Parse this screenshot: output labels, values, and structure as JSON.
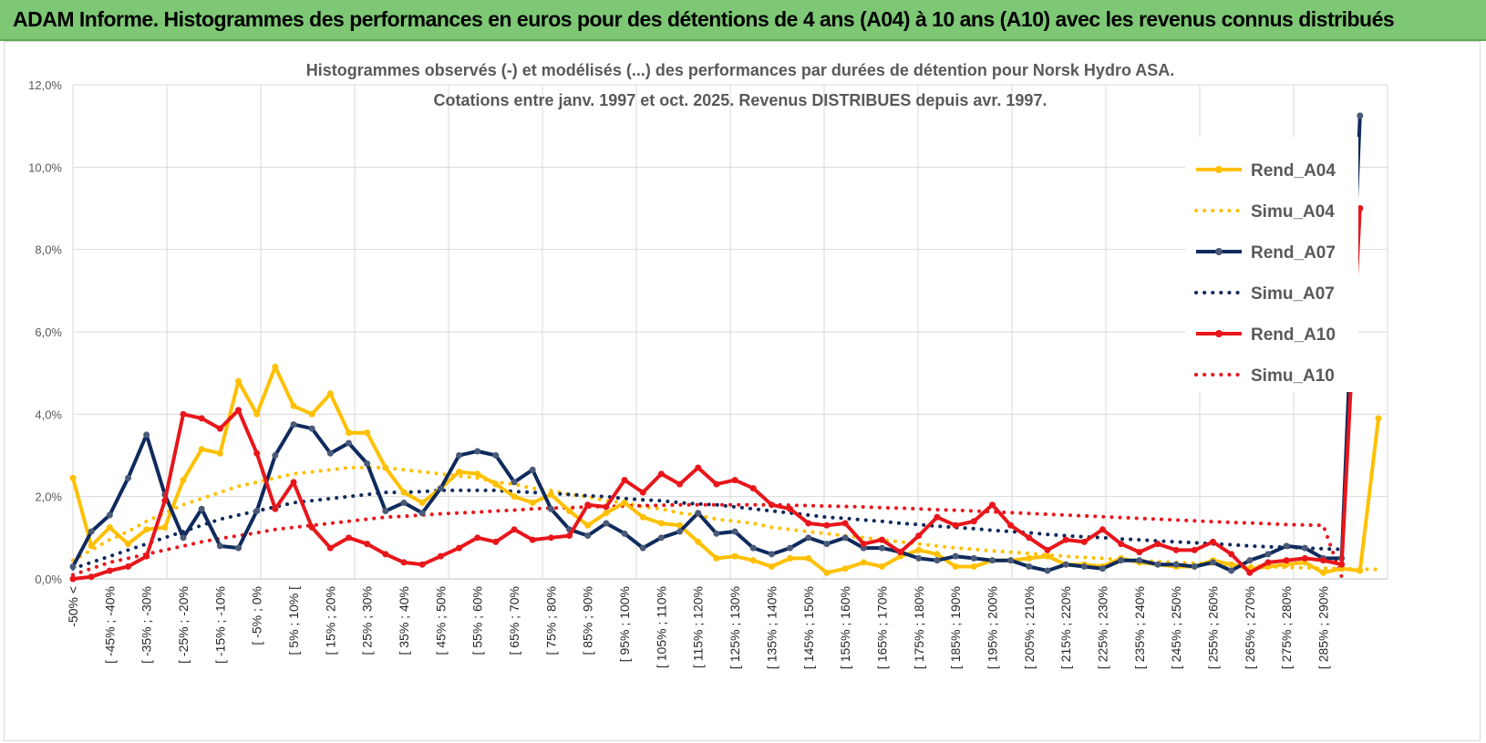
{
  "header": {
    "title": "ADAM Informe. Histogrammes des performances en euros pour des détentions de 4 ans (A04) à 10 ans (A10) avec les revenus connus distribués"
  },
  "chart_data": {
    "type": "line",
    "title": "Histogrammes observés (-) et modélisés (...) des performances par durées de détention pour Norsk Hydro ASA.",
    "subtitle": "Cotations entre janv. 1997 et oct. 2025. Revenus DISTRIBUES depuis avr. 1997.",
    "xlabel": "",
    "ylabel": "",
    "ylim": [
      0,
      12
    ],
    "y_ticks": [
      "0,0%",
      "2,0%",
      "4,0%",
      "6,0%",
      "8,0%",
      "10,0%",
      "12,0%"
    ],
    "grid": true,
    "legend_position": "right",
    "x_tick_labels": [
      "-50% <",
      "[ -45% ; -40%",
      "[ -35% ; -30%",
      "[ -25% ; -20%",
      "[ -15% ; -10%",
      "[ -5% ; 0%",
      "[ 5% ; 10% [",
      "[ 15% ; 20%",
      "[ 25% ; 30%",
      "[ 35% ; 40%",
      "[ 45% ; 50%",
      "[ 55% ; 60%",
      "[ 65% ; 70%",
      "[ 75% ; 80%",
      "[ 85% ; 90%",
      "[ 95% ; 100%",
      "[ 105% ; 110%",
      "[ 115% ; 120%",
      "[ 125% ; 130%",
      "[ 135% ; 140%",
      "[ 145% ; 150%",
      "[ 155% ; 160%",
      "[ 165% ; 170%",
      "[ 175% ; 180%",
      "[ 185% ; 190%",
      "[ 195% ; 200%",
      "[ 205% ; 210%",
      "[ 215% ; 220%",
      "[ 225% ; 230%",
      "[ 235% ; 240%",
      "[ 245% ; 250%",
      "[ 255% ; 260%",
      "[ 265% ; 270%",
      "[ 275% ; 280%",
      "[ 285% ; 290%"
    ],
    "series": [
      {
        "name": "Rend_A04",
        "style": "solid",
        "color": "#ffc000",
        "values": [
          2.45,
          0.8,
          1.25,
          0.85,
          1.2,
          1.25,
          2.4,
          3.15,
          3.05,
          4.8,
          4.0,
          5.15,
          4.2,
          4.0,
          4.5,
          3.55,
          3.55,
          2.7,
          2.1,
          1.85,
          2.2,
          2.6,
          2.55,
          2.3,
          2.0,
          1.85,
          2.05,
          1.65,
          1.3,
          1.6,
          1.85,
          1.5,
          1.35,
          1.3,
          0.9,
          0.5,
          0.55,
          0.45,
          0.3,
          0.5,
          0.5,
          0.15,
          0.25,
          0.4,
          0.3,
          0.55,
          0.7,
          0.6,
          0.3,
          0.3,
          0.45,
          0.45,
          0.5,
          0.55,
          0.35,
          0.35,
          0.3,
          0.5,
          0.4,
          0.35,
          0.3,
          0.3,
          0.45,
          0.35,
          0.25,
          0.3,
          0.35,
          0.4,
          0.15,
          0.25,
          0.2,
          3.9
        ]
      },
      {
        "name": "Simu_A04",
        "style": "dotted",
        "color": "#ffc000",
        "values": [
          0.45,
          0.7,
          0.95,
          1.15,
          1.4,
          1.6,
          1.8,
          1.95,
          2.1,
          2.25,
          2.35,
          2.45,
          2.55,
          2.6,
          2.65,
          2.7,
          2.7,
          2.7,
          2.65,
          2.6,
          2.55,
          2.5,
          2.45,
          2.35,
          2.3,
          2.2,
          2.15,
          2.05,
          2.0,
          1.9,
          1.85,
          1.75,
          1.7,
          1.6,
          1.55,
          1.45,
          1.4,
          1.35,
          1.25,
          1.2,
          1.15,
          1.1,
          1.05,
          1.0,
          0.95,
          0.9,
          0.85,
          0.8,
          0.75,
          0.72,
          0.68,
          0.65,
          0.62,
          0.58,
          0.55,
          0.52,
          0.5,
          0.47,
          0.45,
          0.42,
          0.4,
          0.38,
          0.36,
          0.34,
          0.32,
          0.3,
          0.28,
          0.27,
          0.26,
          0.25,
          0.24,
          0.23
        ]
      },
      {
        "name": "Rend_A07",
        "style": "solid",
        "color": "#0f2a5c",
        "values": [
          0.3,
          1.15,
          1.55,
          2.45,
          3.5,
          2.05,
          1.0,
          1.7,
          0.8,
          0.75,
          1.65,
          3.0,
          3.75,
          3.65,
          3.05,
          3.3,
          2.8,
          1.65,
          1.85,
          1.6,
          2.2,
          3.0,
          3.1,
          3.0,
          2.35,
          2.65,
          1.7,
          1.2,
          1.05,
          1.35,
          1.1,
          0.75,
          1.0,
          1.15,
          1.6,
          1.1,
          1.15,
          0.75,
          0.6,
          0.75,
          1.0,
          0.85,
          1.0,
          0.75,
          0.75,
          0.65,
          0.5,
          0.45,
          0.55,
          0.5,
          0.45,
          0.45,
          0.3,
          0.2,
          0.35,
          0.3,
          0.25,
          0.45,
          0.45,
          0.35,
          0.35,
          0.3,
          0.4,
          0.2,
          0.45,
          0.6,
          0.8,
          0.75,
          0.5,
          0.5,
          11.25
        ]
      },
      {
        "name": "Simu_A07",
        "style": "dotted",
        "color": "#0f2a5c",
        "values": [
          0.25,
          0.4,
          0.55,
          0.7,
          0.85,
          1.0,
          1.15,
          1.3,
          1.45,
          1.55,
          1.65,
          1.75,
          1.85,
          1.9,
          1.95,
          2.0,
          2.05,
          2.1,
          2.1,
          2.12,
          2.15,
          2.15,
          2.15,
          2.15,
          2.12,
          2.1,
          2.08,
          2.05,
          2.02,
          2.0,
          1.95,
          1.92,
          1.9,
          1.85,
          1.82,
          1.8,
          1.75,
          1.7,
          1.65,
          1.6,
          1.55,
          1.5,
          1.47,
          1.43,
          1.4,
          1.35,
          1.32,
          1.28,
          1.25,
          1.22,
          1.18,
          1.15,
          1.12,
          1.08,
          1.05,
          1.02,
          1.0,
          0.97,
          0.95,
          0.92,
          0.9,
          0.88,
          0.85,
          0.83,
          0.8,
          0.78,
          0.77,
          0.75,
          0.73,
          0.72
        ]
      },
      {
        "name": "Rend_A10",
        "style": "solid",
        "color": "#e8161b",
        "values": [
          0.0,
          0.05,
          0.2,
          0.3,
          0.55,
          1.9,
          4.0,
          3.9,
          3.65,
          4.1,
          3.05,
          1.7,
          2.35,
          1.25,
          0.75,
          1.0,
          0.85,
          0.6,
          0.4,
          0.35,
          0.55,
          0.75,
          1.0,
          0.9,
          1.2,
          0.95,
          1.0,
          1.05,
          1.8,
          1.75,
          2.4,
          2.1,
          2.55,
          2.3,
          2.7,
          2.3,
          2.4,
          2.2,
          1.8,
          1.7,
          1.35,
          1.3,
          1.35,
          0.85,
          0.95,
          0.65,
          1.05,
          1.5,
          1.3,
          1.4,
          1.8,
          1.3,
          1.0,
          0.7,
          0.95,
          0.9,
          1.2,
          0.85,
          0.65,
          0.85,
          0.7,
          0.7,
          0.9,
          0.6,
          0.15,
          0.4,
          0.45,
          0.5,
          0.45,
          0.35,
          9.0
        ]
      },
      {
        "name": "Simu_A10",
        "style": "dotted",
        "color": "#e8161b",
        "values": [
          0.1,
          0.25,
          0.4,
          0.5,
          0.6,
          0.7,
          0.8,
          0.9,
          0.98,
          1.05,
          1.12,
          1.2,
          1.25,
          1.3,
          1.35,
          1.4,
          1.45,
          1.5,
          1.52,
          1.55,
          1.58,
          1.6,
          1.62,
          1.65,
          1.67,
          1.7,
          1.72,
          1.73,
          1.75,
          1.76,
          1.77,
          1.78,
          1.79,
          1.8,
          1.8,
          1.8,
          1.8,
          1.8,
          1.8,
          1.79,
          1.78,
          1.77,
          1.76,
          1.75,
          1.73,
          1.72,
          1.7,
          1.68,
          1.67,
          1.65,
          1.63,
          1.61,
          1.59,
          1.57,
          1.55,
          1.53,
          1.51,
          1.49,
          1.47,
          1.45,
          1.43,
          1.41,
          1.39,
          1.37,
          1.36,
          1.34,
          1.32,
          1.31,
          1.3,
          0.05
        ]
      }
    ]
  }
}
